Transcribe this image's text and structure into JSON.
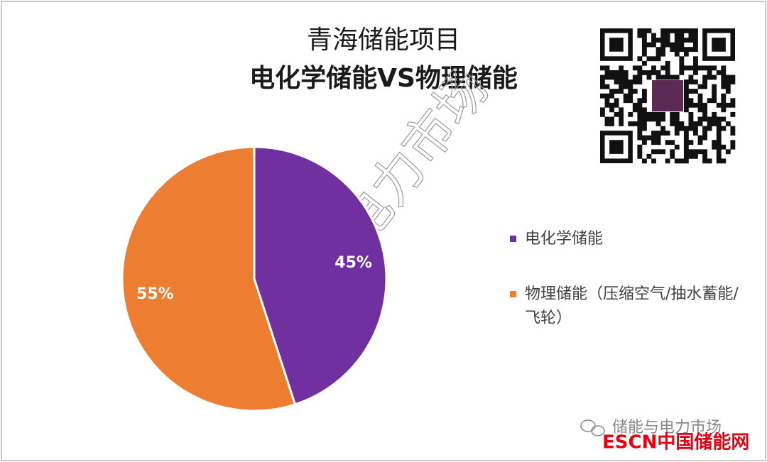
{
  "chart_data": {
    "type": "pie",
    "title": "青海储能项目",
    "subtitle": "电化学储能VS物理储能",
    "categories": [
      "电化学储能",
      "物理储能（压缩空气/抽水蓄能/飞轮）"
    ],
    "values": [
      45,
      55
    ],
    "value_labels": [
      "45%",
      "55%"
    ],
    "colors": [
      "#7030a0",
      "#ed7d31"
    ],
    "legend": "right"
  },
  "watermark": "储能与电力市场",
  "footer_source": "储能与电力市场",
  "logo": "ESCN中国储能网"
}
